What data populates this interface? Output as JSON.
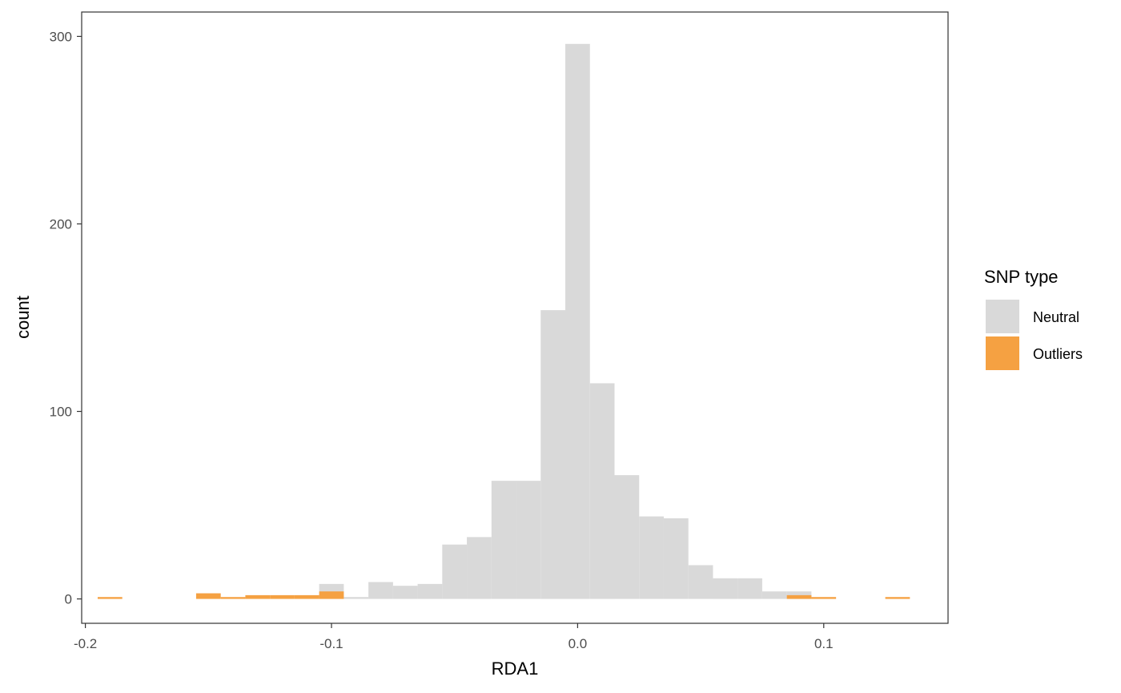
{
  "chart_data": {
    "type": "bar",
    "title": "",
    "xlabel": "RDA1",
    "ylabel": "count",
    "xlim": [
      -0.2015,
      0.1505
    ],
    "ylim": [
      -13,
      313
    ],
    "x_ticks": [
      -0.2,
      -0.1,
      0.0,
      0.1
    ],
    "x_tick_labels": [
      "-0.2",
      "-0.1",
      "0.0",
      "0.1"
    ],
    "y_ticks": [
      0,
      100,
      200,
      300
    ],
    "y_tick_labels": [
      "0",
      "100",
      "200",
      "300"
    ],
    "bin_width": 0.01,
    "grid": false,
    "legend": {
      "title": "SNP type",
      "position": "right"
    },
    "series": [
      {
        "name": "Neutral",
        "color": "#d9d9d9",
        "bins": [
          {
            "x": -0.1,
            "count": 8
          },
          {
            "x": -0.09,
            "count": 1
          },
          {
            "x": -0.08,
            "count": 9
          },
          {
            "x": -0.07,
            "count": 7
          },
          {
            "x": -0.06,
            "count": 8
          },
          {
            "x": -0.05,
            "count": 29
          },
          {
            "x": -0.04,
            "count": 33
          },
          {
            "x": -0.03,
            "count": 63
          },
          {
            "x": -0.02,
            "count": 63
          },
          {
            "x": -0.01,
            "count": 154
          },
          {
            "x": 0.0,
            "count": 296
          },
          {
            "x": 0.01,
            "count": 115
          },
          {
            "x": 0.02,
            "count": 66
          },
          {
            "x": 0.03,
            "count": 44
          },
          {
            "x": 0.04,
            "count": 43
          },
          {
            "x": 0.05,
            "count": 18
          },
          {
            "x": 0.06,
            "count": 11
          },
          {
            "x": 0.07,
            "count": 11
          },
          {
            "x": 0.08,
            "count": 4
          },
          {
            "x": 0.09,
            "count": 4
          }
        ]
      },
      {
        "name": "Outliers",
        "color": "#f5a142",
        "bins": [
          {
            "x": -0.19,
            "count": 1
          },
          {
            "x": -0.15,
            "count": 3
          },
          {
            "x": -0.14,
            "count": 1
          },
          {
            "x": -0.13,
            "count": 2
          },
          {
            "x": -0.12,
            "count": 2
          },
          {
            "x": -0.11,
            "count": 2
          },
          {
            "x": -0.1,
            "count": 4
          },
          {
            "x": 0.09,
            "count": 2
          },
          {
            "x": 0.1,
            "count": 1
          },
          {
            "x": 0.13,
            "count": 1
          }
        ]
      }
    ]
  }
}
